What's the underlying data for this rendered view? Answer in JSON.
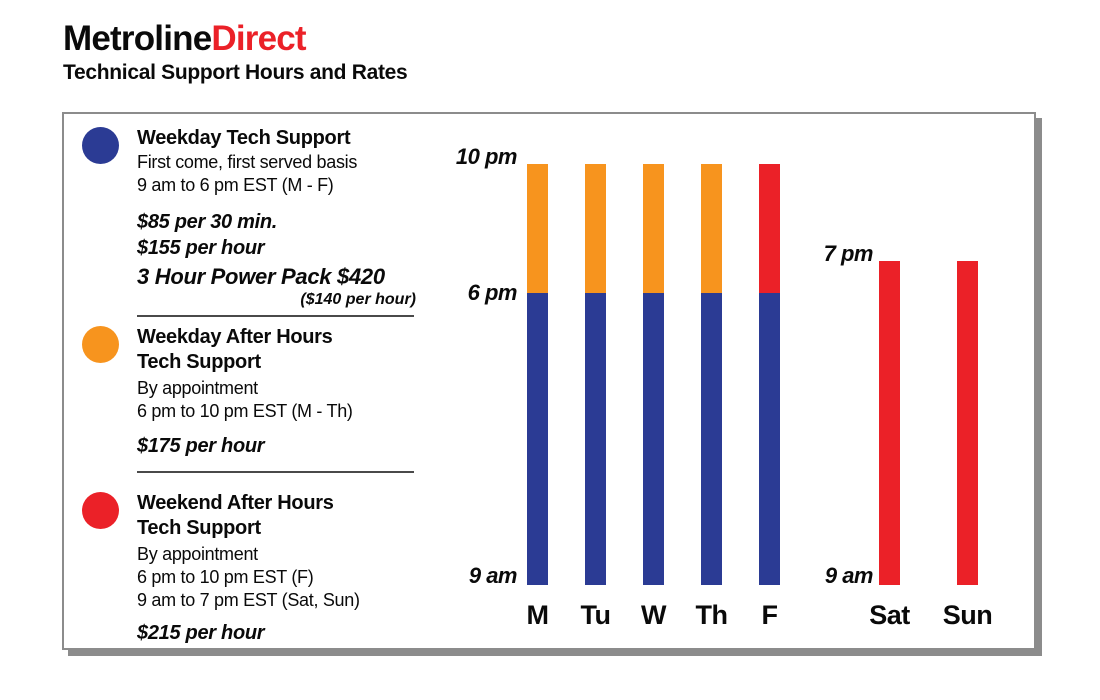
{
  "header": {
    "brand_black": "Metroline",
    "brand_red": "Direct",
    "subtitle": "Technical Support Hours and Rates"
  },
  "colors": {
    "weekday": "#2B3B94",
    "weekday_after_hours": "#F7941E",
    "weekend_after_hours": "#EB2128",
    "brand_red": "#EB2128",
    "panel_border": "#8C8C8C",
    "text": "#0A0A0A"
  },
  "legend": {
    "items": [
      {
        "swatch": "weekday",
        "title_lines": [
          "Weekday Tech Support"
        ],
        "body_lines": [
          "First come, first served basis",
          "9 am to 6 pm EST (M - F)"
        ],
        "price_lines": [
          "$85 per 30 min.",
          "$155 per hour"
        ],
        "power_pack": "3 Hour Power Pack $420",
        "power_pack_note": "($140 per hour)"
      },
      {
        "swatch": "weekday_after_hours",
        "title_lines": [
          "Weekday After Hours",
          "Tech Support"
        ],
        "body_lines": [
          "By appointment",
          "6 pm to 10 pm EST (M - Th)"
        ],
        "price_lines": [
          "$175 per hour"
        ]
      },
      {
        "swatch": "weekend_after_hours",
        "title_lines": [
          "Weekend After Hours",
          "Tech Support"
        ],
        "body_lines": [
          "By appointment",
          "6 pm to 10 pm EST (F)",
          "9 am to 7 pm EST (Sat, Sun)"
        ],
        "price_lines": [
          "$215 per hour"
        ]
      }
    ]
  },
  "chart_data": {
    "type": "bar",
    "stacked": true,
    "orientation": "vertical",
    "title": "Technical Support Hours and Rates",
    "y_axis": {
      "unit": "hour_of_day",
      "min": 9,
      "max": 22,
      "gridlines": false
    },
    "categories": [
      "M",
      "Tu",
      "W",
      "Th",
      "F",
      "Sat",
      "Sun"
    ],
    "bars": [
      {
        "day": "M",
        "segments": [
          {
            "service": "weekday",
            "start": 9,
            "end": 18
          },
          {
            "service": "weekday_after_hours",
            "start": 18,
            "end": 22
          }
        ]
      },
      {
        "day": "Tu",
        "segments": [
          {
            "service": "weekday",
            "start": 9,
            "end": 18
          },
          {
            "service": "weekday_after_hours",
            "start": 18,
            "end": 22
          }
        ]
      },
      {
        "day": "W",
        "segments": [
          {
            "service": "weekday",
            "start": 9,
            "end": 18
          },
          {
            "service": "weekday_after_hours",
            "start": 18,
            "end": 22
          }
        ]
      },
      {
        "day": "Th",
        "segments": [
          {
            "service": "weekday",
            "start": 9,
            "end": 18
          },
          {
            "service": "weekday_after_hours",
            "start": 18,
            "end": 22
          }
        ]
      },
      {
        "day": "F",
        "segments": [
          {
            "service": "weekday",
            "start": 9,
            "end": 18
          },
          {
            "service": "weekend_after_hours",
            "start": 18,
            "end": 22
          }
        ]
      },
      {
        "day": "Sat",
        "segments": [
          {
            "service": "weekend_after_hours",
            "start": 9,
            "end": 19
          }
        ]
      },
      {
        "day": "Sun",
        "segments": [
          {
            "service": "weekend_after_hours",
            "start": 9,
            "end": 19
          }
        ]
      }
    ],
    "axis_labels": [
      {
        "text": "10 pm",
        "hour": 22,
        "group": "weekday"
      },
      {
        "text": "6 pm",
        "hour": 18,
        "group": "weekday"
      },
      {
        "text": "9 am",
        "hour": 9,
        "group": "weekday"
      },
      {
        "text": "7 pm",
        "hour": 19,
        "group": "weekend"
      },
      {
        "text": "9 am",
        "hour": 9,
        "group": "weekend"
      }
    ],
    "legend_position": "left"
  }
}
